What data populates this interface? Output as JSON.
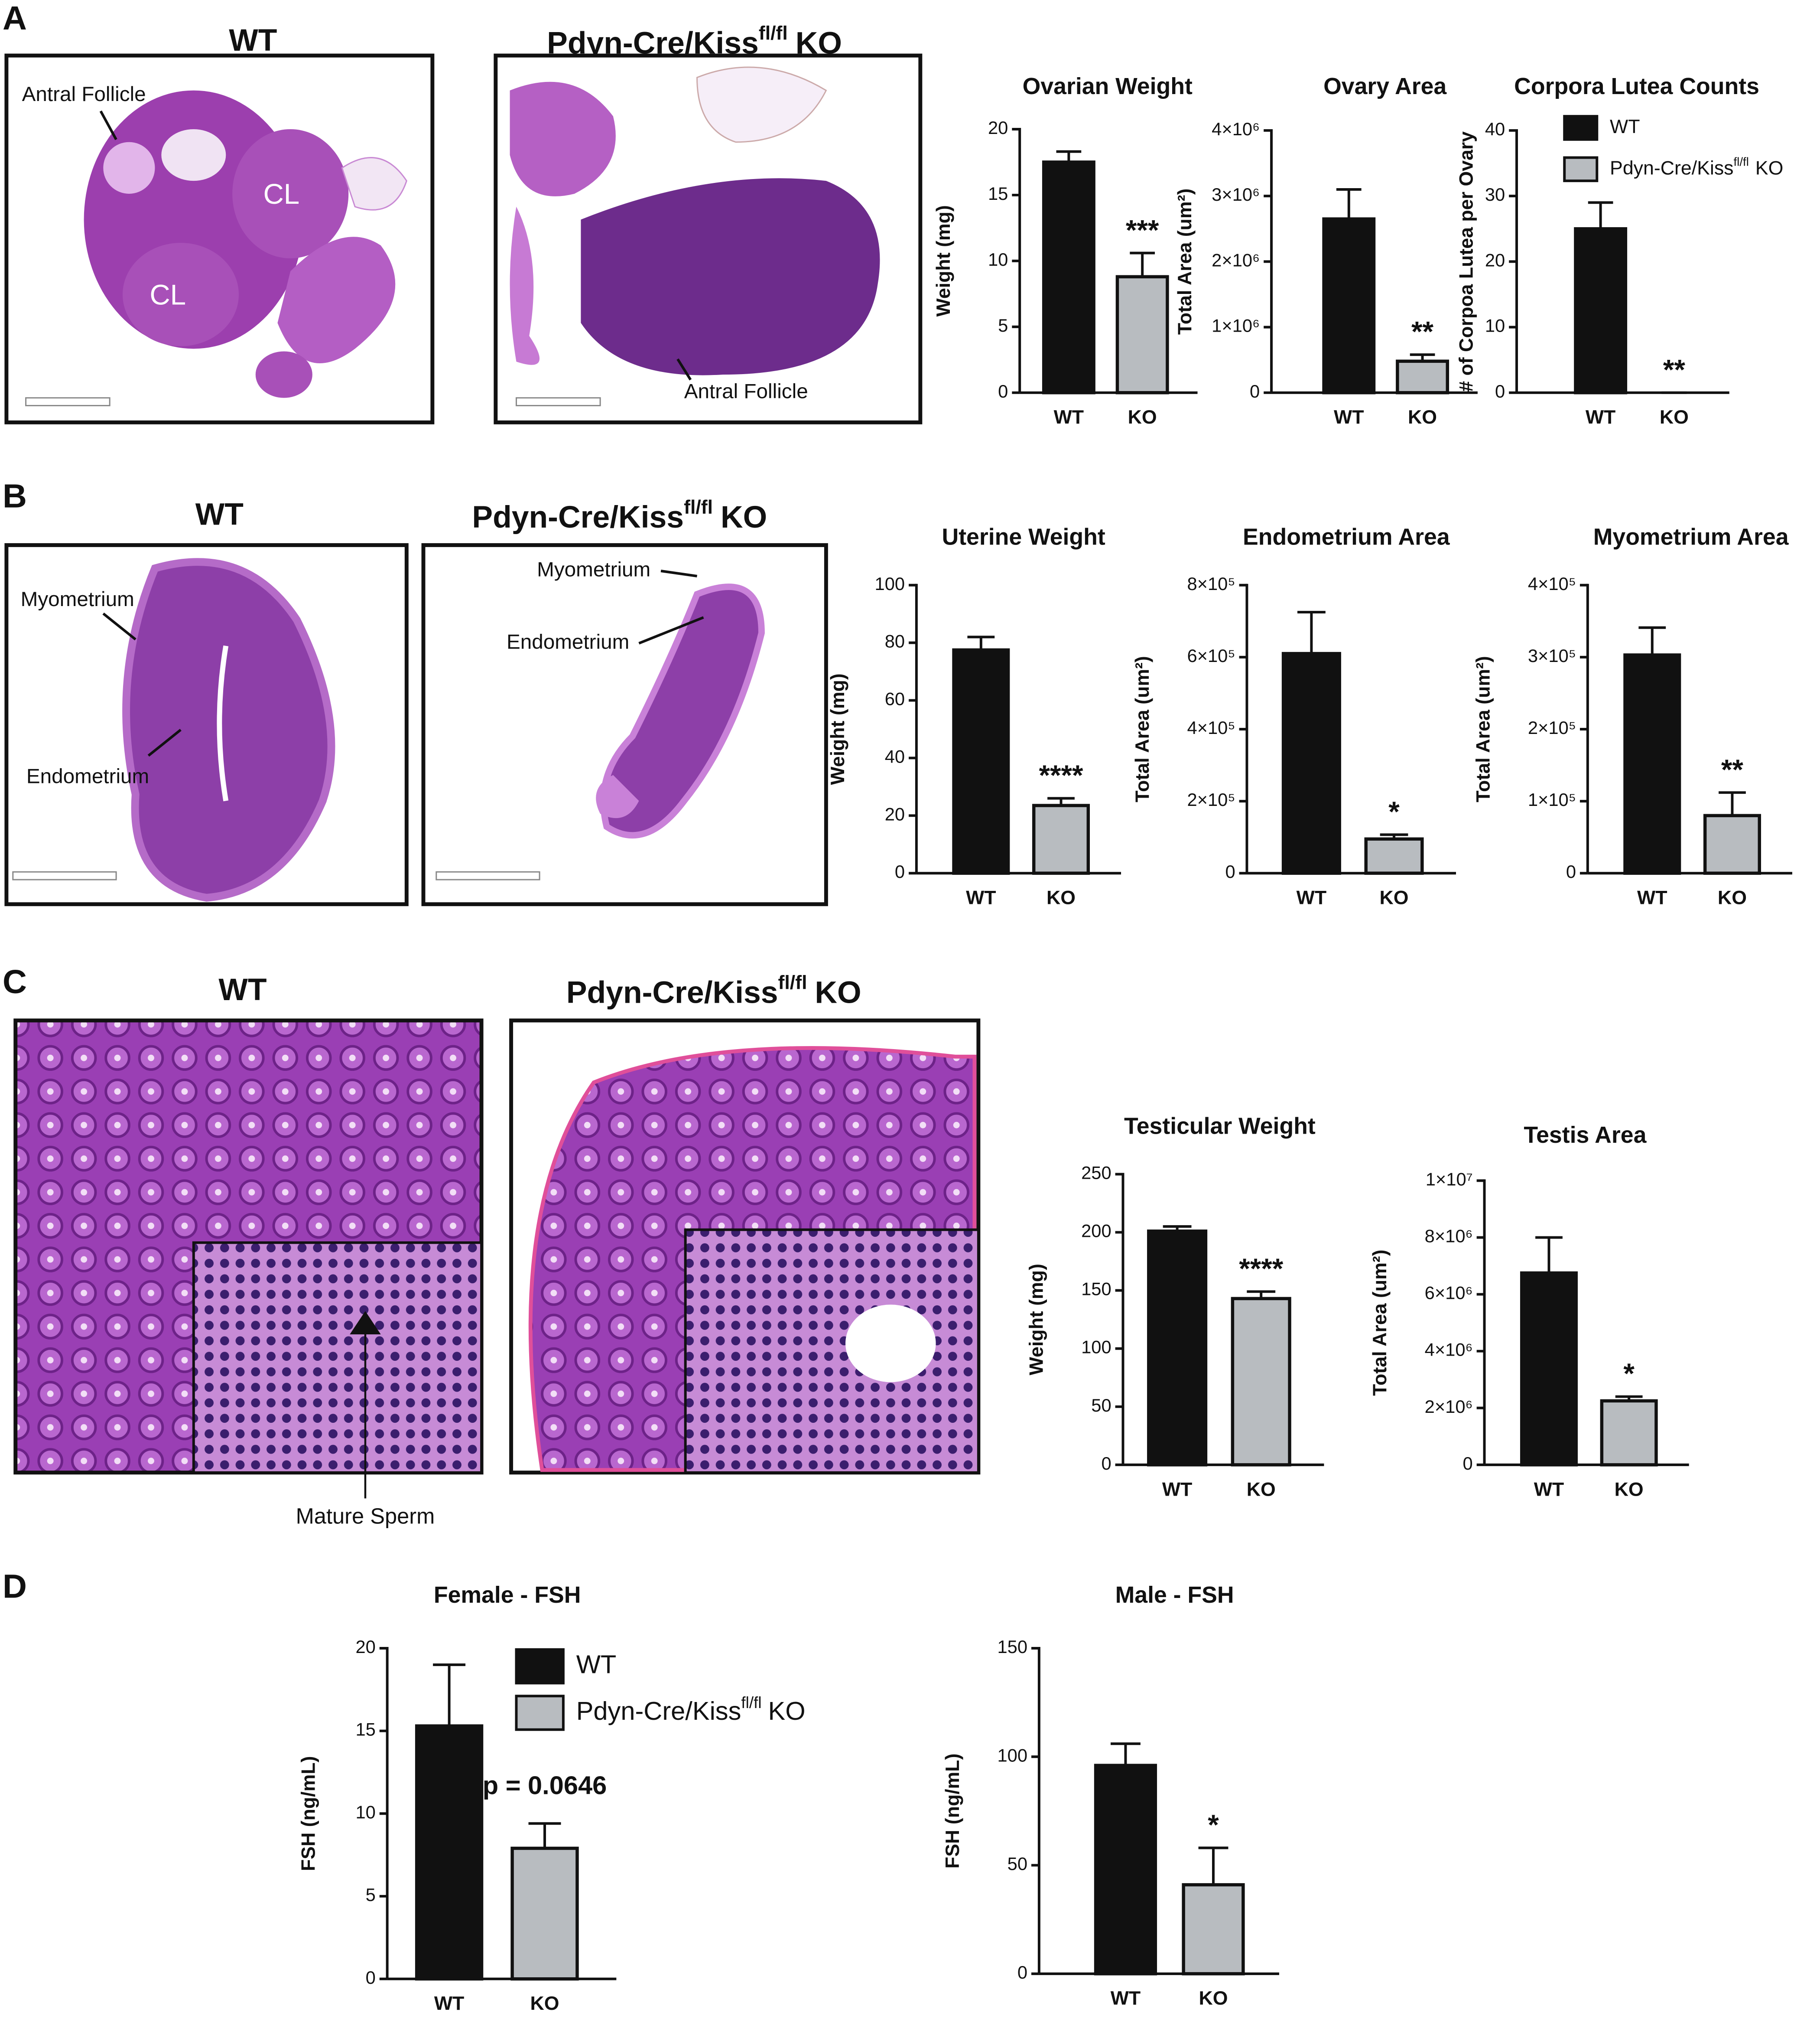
{
  "panels": [
    {
      "letter": "A",
      "wt": {
        "title": "WT",
        "notes": [
          "Antral Follicle",
          "CL",
          "CL"
        ]
      },
      "ko": {
        "title": [
          "Pdyn-Cre/Kiss",
          "fl/fl",
          "KO"
        ],
        "notes": [
          "Antral Follicle"
        ]
      }
    },
    {
      "letter": "B",
      "wt": {
        "title": "WT",
        "notes": [
          "Myometrium",
          "Endometrium"
        ]
      },
      "ko": {
        "title": [
          "Pdyn-Cre/Kiss",
          "fl/fl",
          "KO"
        ],
        "notes": [
          "Myometrium",
          "Endometrium"
        ]
      }
    },
    {
      "letter": "C",
      "wt": {
        "title": "WT",
        "notes": [
          "Mature Sperm"
        ]
      },
      "ko": {
        "title": [
          "Pdyn-Cre/Kiss",
          "fl/fl",
          "KO"
        ]
      }
    },
    {
      "letter": "D"
    }
  ],
  "chart_data": [
    {
      "type": "bar",
      "title": "Ovarian Weight",
      "y_label": "Weight (mg)",
      "categories": [
        "WT",
        "KO"
      ],
      "values": [
        17.5,
        8.8
      ],
      "errors": [
        0.8,
        1.8
      ],
      "colors": [
        "#111111",
        "#b8bcc0"
      ],
      "ylim": [
        0,
        20
      ],
      "yticks": [
        0,
        5,
        10,
        15,
        20
      ],
      "annotation": "***"
    },
    {
      "type": "bar",
      "title": "Ovary Area",
      "y_label": "Total Area (um²)",
      "categories": [
        "WT",
        "KO"
      ],
      "values": [
        2650000,
        480000
      ],
      "errors": [
        450000,
        100000
      ],
      "colors": [
        "#111111",
        "#b8bcc0"
      ],
      "ylim": [
        0,
        4000000
      ],
      "yticks": [
        0,
        {
          "value": 1000000,
          "label": "1×10⁶"
        },
        {
          "value": 2000000,
          "label": "2×10⁶"
        },
        {
          "value": 3000000,
          "label": "3×10⁶"
        },
        {
          "value": 4000000,
          "label": "4×10⁶"
        }
      ],
      "annotation": "**"
    },
    {
      "type": "bar",
      "title": "Corpora Lutea Counts",
      "y_label": "# of Corpoa Lutea per Ovary",
      "categories": [
        "WT",
        "KO"
      ],
      "values": [
        25,
        0
      ],
      "errors": [
        4,
        0
      ],
      "colors": [
        "#111111",
        "#b8bcc0"
      ],
      "ylim": [
        0,
        40
      ],
      "yticks": [
        0,
        10,
        20,
        30,
        40
      ],
      "annotation": "**",
      "legend": [
        [
          "WT"
        ],
        [
          "Pdyn-Cre/Kiss",
          "fl/fl",
          "KO"
        ]
      ]
    },
    {
      "type": "bar",
      "title": "Uterine Weight",
      "y_label": "Weight (mg)",
      "categories": [
        "WT",
        "KO"
      ],
      "values": [
        77.5,
        23.5
      ],
      "errors": [
        4.5,
        2.5
      ],
      "colors": [
        "#111111",
        "#b8bcc0"
      ],
      "ylim": [
        0,
        100
      ],
      "yticks": [
        0,
        20,
        40,
        60,
        80,
        100
      ],
      "annotation": "****"
    },
    {
      "type": "bar",
      "title": "Endometrium Area",
      "y_label": "Total Area (um²)",
      "categories": [
        "WT",
        "KO"
      ],
      "values": [
        610000,
        95000
      ],
      "errors": [
        115000,
        12000
      ],
      "colors": [
        "#111111",
        "#b8bcc0"
      ],
      "ylim": [
        0,
        800000
      ],
      "yticks": [
        0,
        {
          "value": 200000,
          "label": "2×10⁵"
        },
        {
          "value": 400000,
          "label": "4×10⁵"
        },
        {
          "value": 600000,
          "label": "6×10⁵"
        },
        {
          "value": 800000,
          "label": "8×10⁵"
        }
      ],
      "annotation": "*"
    },
    {
      "type": "bar",
      "title": "Myometrium  Area",
      "y_label": "Total Area (um²)",
      "categories": [
        "WT",
        "KO"
      ],
      "values": [
        303000,
        80000
      ],
      "errors": [
        38000,
        32000
      ],
      "colors": [
        "#111111",
        "#b8bcc0"
      ],
      "ylim": [
        0,
        400000
      ],
      "yticks": [
        0,
        {
          "value": 100000,
          "label": "1×10⁵"
        },
        {
          "value": 200000,
          "label": "2×10⁵"
        },
        {
          "value": 300000,
          "label": "3×10⁵"
        },
        {
          "value": 400000,
          "label": "4×10⁵"
        }
      ],
      "annotation": "**"
    },
    {
      "type": "bar",
      "title": "Testicular Weight",
      "y_label": "Weight (mg)",
      "categories": [
        "WT",
        "KO"
      ],
      "values": [
        201,
        143
      ],
      "errors": [
        4,
        6
      ],
      "colors": [
        "#111111",
        "#b8bcc0"
      ],
      "ylim": [
        0,
        250
      ],
      "yticks": [
        0,
        50,
        100,
        150,
        200,
        250
      ],
      "annotation": "****"
    },
    {
      "type": "bar",
      "title": "Testis Area",
      "y_label": "Total Area (um²)",
      "categories": [
        "WT",
        "KO"
      ],
      "values": [
        6750000,
        2250000
      ],
      "errors": [
        1250000,
        150000
      ],
      "colors": [
        "#111111",
        "#b8bcc0"
      ],
      "ylim": [
        0,
        10000000
      ],
      "yticks": [
        0,
        {
          "value": 2000000,
          "label": "2×10⁶"
        },
        {
          "value": 4000000,
          "label": "4×10⁶"
        },
        {
          "value": 6000000,
          "label": "6×10⁶"
        },
        {
          "value": 8000000,
          "label": "8×10⁶"
        },
        {
          "value": 10000000,
          "label": "1×10⁷"
        }
      ],
      "annotation": "*"
    },
    {
      "type": "bar",
      "title": "Female - FSH",
      "y_label": "FSH (ng/mL)",
      "categories": [
        "WT",
        "KO"
      ],
      "values": [
        15.3,
        7.9
      ],
      "errors": [
        3.7,
        1.5
      ],
      "colors": [
        "#111111",
        "#b8bcc0"
      ],
      "ylim": [
        0,
        20
      ],
      "yticks": [
        0,
        5,
        10,
        15,
        20
      ],
      "annotation": "p = 0.0646",
      "legend": [
        [
          "WT"
        ],
        [
          "Pdyn-Cre/Kiss",
          "fl/fl",
          "KO"
        ]
      ]
    },
    {
      "type": "bar",
      "title": "Male - FSH",
      "y_label": "FSH (ng/mL)",
      "categories": [
        "WT",
        "KO"
      ],
      "values": [
        96,
        41
      ],
      "errors": [
        10,
        17
      ],
      "colors": [
        "#111111",
        "#b8bcc0"
      ],
      "ylim": [
        0,
        150
      ],
      "yticks": [
        0,
        50,
        100,
        150
      ],
      "annotation": "*"
    }
  ]
}
